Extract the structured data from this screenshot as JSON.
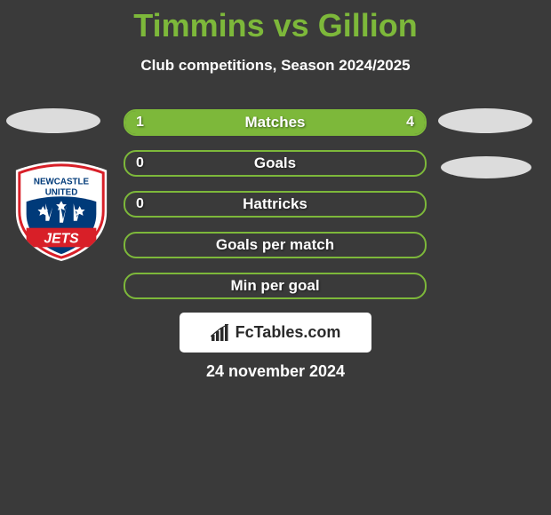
{
  "title": "Timmins vs Gillion",
  "subtitle": "Club competitions, Season 2024/2025",
  "branding": "FcTables.com",
  "date": "24 november 2024",
  "colors": {
    "background": "#3a3a3a",
    "accent": "#7db83a",
    "text": "#ffffff",
    "avatar_bg": "#dcdcdc",
    "branding_bg": "#ffffff",
    "branding_text": "#2a2a2a"
  },
  "stats": [
    {
      "label": "Matches",
      "left_value": "1",
      "right_value": "4",
      "left_pct": 20,
      "right_pct": 80
    },
    {
      "label": "Goals",
      "left_value": "0",
      "right_value": "",
      "left_pct": 0,
      "right_pct": 0
    },
    {
      "label": "Hattricks",
      "left_value": "0",
      "right_value": "",
      "left_pct": 0,
      "right_pct": 0
    },
    {
      "label": "Goals per match",
      "left_value": "",
      "right_value": "",
      "left_pct": 0,
      "right_pct": 0
    },
    {
      "label": "Min per goal",
      "left_value": "",
      "right_value": "",
      "left_pct": 0,
      "right_pct": 0
    }
  ],
  "club_logo_left": {
    "name": "Newcastle United Jets",
    "bg": "#ffffff",
    "ring_red": "#d81f28",
    "inner_blue": "#003a79",
    "stripe": "#d81f28",
    "text_color": "#003a79"
  }
}
